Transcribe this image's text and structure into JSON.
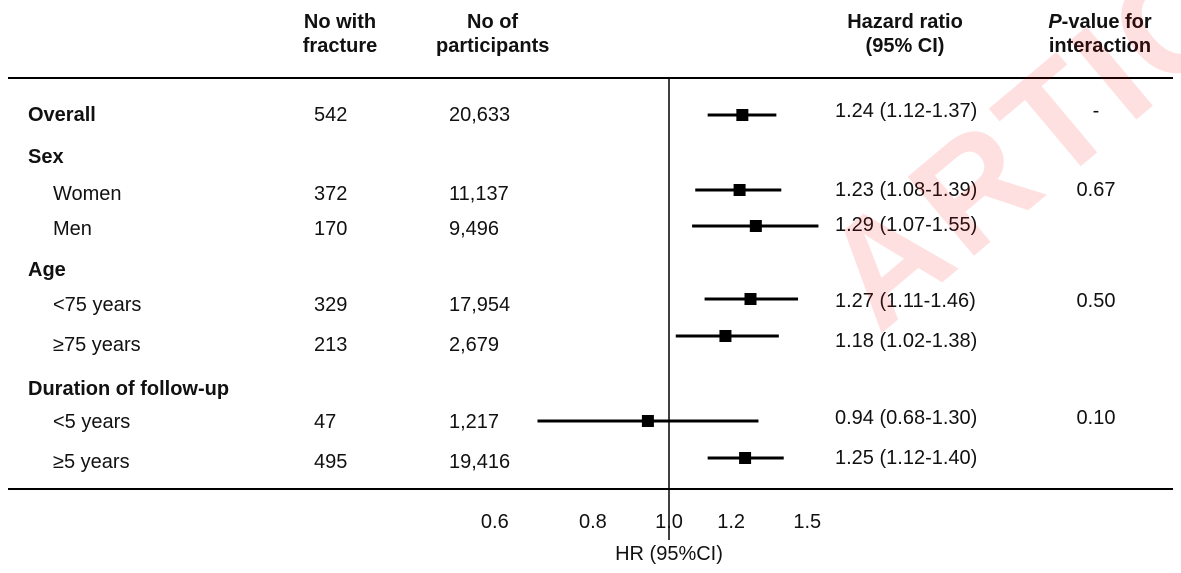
{
  "watermark": "ARTICLE",
  "headers": {
    "fractures": [
      "No with",
      "fracture"
    ],
    "participants": [
      "No of",
      "participants"
    ],
    "hr": [
      "Hazard ratio",
      "(95% CI)"
    ],
    "pval_italic": "P",
    "pval_rest": "-value for",
    "pval_line2": "interaction"
  },
  "chart_data": {
    "type": "forest",
    "xlabel": "HR (95%CI)",
    "xticks": [
      0.6,
      0.8,
      1.0,
      1.2,
      1.5
    ],
    "xtick_labels": [
      "0.6",
      "0.8",
      "1.0",
      "1.2",
      "1.5"
    ],
    "reference_line": 1.0,
    "x_scale": "log",
    "rows": [
      {
        "label": "Overall",
        "bold": true,
        "fractures": "542",
        "participants": "20,633",
        "hr": 1.24,
        "lo": 1.12,
        "hi": 1.37,
        "text": "1.24 (1.12-1.37)",
        "p": "-"
      },
      {
        "label": "Sex",
        "bold": true,
        "header": true
      },
      {
        "label": "Women",
        "fractures": "372",
        "participants": "11,137",
        "hr": 1.23,
        "lo": 1.08,
        "hi": 1.39,
        "text": "1.23 (1.08-1.39)",
        "p": "0.67"
      },
      {
        "label": "Men",
        "fractures": "170",
        "participants": "9,496",
        "hr": 1.29,
        "lo": 1.07,
        "hi": 1.55,
        "text": "1.29 (1.07-1.55)",
        "p": ""
      },
      {
        "label": "Age",
        "bold": true,
        "header": true
      },
      {
        "label": "<75 years",
        "fractures": "329",
        "participants": "17,954",
        "hr": 1.27,
        "lo": 1.11,
        "hi": 1.46,
        "text": "1.27 (1.11-1.46)",
        "p": "0.50"
      },
      {
        "label": "≥75 years",
        "fractures": "213",
        "participants": "2,679",
        "hr": 1.18,
        "lo": 1.02,
        "hi": 1.38,
        "text": "1.18 (1.02-1.38)",
        "p": ""
      },
      {
        "label": "Duration of follow-up",
        "bold": true,
        "header": true
      },
      {
        "label": "<5 years",
        "fractures": "47",
        "participants": "1,217",
        "hr": 0.94,
        "lo": 0.68,
        "hi": 1.3,
        "text": "0.94 (0.68-1.30)",
        "p": "0.10"
      },
      {
        "label": "≥5 years",
        "fractures": "495",
        "participants": "19,416",
        "hr": 1.25,
        "lo": 1.12,
        "hi": 1.4,
        "text": "1.25 (1.12-1.40)",
        "p": ""
      }
    ]
  }
}
